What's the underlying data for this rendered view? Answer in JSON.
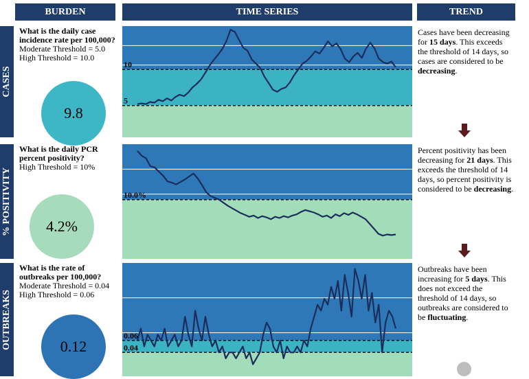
{
  "headers": [
    "BURDEN",
    "TIME SERIES",
    "TREND"
  ],
  "rows": [
    {
      "label": "CASES",
      "question": "What is the daily case incidence rate per 100,000?",
      "thresholds": [
        "Moderate Threshold = 5.0",
        "High Threshold = 10.0"
      ],
      "burden": "9.8",
      "burden_color": "#3db7c6",
      "trend": [
        {
          "text": "Cases have been decreasing for "
        },
        {
          "text": "15 days",
          "bold": true
        },
        {
          "text": ". This exceeds the threshold of 14 days, so cases are considered to be "
        },
        {
          "text": "decreasing",
          "bold": true
        },
        {
          "text": "."
        }
      ]
    },
    {
      "label": "% POSITIVITY",
      "question": "What is the daily PCR percent positivity?",
      "thresholds": [
        "High Threshold = 10%"
      ],
      "burden": "4.2%",
      "burden_color": "#a6dcbc",
      "trend": [
        {
          "text": "Percent positivity has been decreasing for "
        },
        {
          "text": "21 days",
          "bold": true
        },
        {
          "text": ". This exceeds the threshold of 14 days, so percent positivity is considered to be "
        },
        {
          "text": "decreasing",
          "bold": true
        },
        {
          "text": "."
        }
      ]
    },
    {
      "label": "OUTBREAKS",
      "question": "What is the rate of outbreaks per 100,000?",
      "thresholds": [
        "Moderate Threshold = 0.04",
        "High Threshold = 0.06"
      ],
      "burden": "0.12",
      "burden_color": "#2e74b5",
      "trend": [
        {
          "text": "Outbreaks have been increasing for "
        },
        {
          "text": "5 days",
          "bold": true
        },
        {
          "text": ". This does not exceed the threshold of 14 days, so outbreaks are considered to be "
        },
        {
          "text": "fluctuating",
          "bold": true
        },
        {
          "text": "."
        }
      ]
    }
  ],
  "chart_data": [
    {
      "type": "line",
      "color": "#1b2d5b",
      "ylim": [
        0.6,
        16
      ],
      "yticks": [
        5,
        10
      ],
      "band_colors": [
        "#a3dcb9",
        "#3bb3c3",
        "#2e78b7"
      ],
      "values": [
        5.2,
        5.3,
        5.2,
        5.5,
        5.4,
        5.8,
        5.6,
        6.0,
        5.7,
        6.2,
        6.5,
        6.3,
        6.8,
        7.5,
        8.0,
        8.6,
        9.5,
        10.5,
        11.3,
        12.0,
        12.8,
        13.9,
        15.5,
        15.2,
        14.1,
        13.0,
        12.6,
        11.4,
        10.8,
        10.2,
        9.0,
        8.1,
        7.2,
        6.9,
        7.3,
        7.5,
        8.2,
        9.2,
        10.0,
        10.8,
        11.2,
        11.8,
        12.5,
        12.2,
        13.0,
        13.9,
        13.2,
        13.6,
        12.8,
        11.5,
        11.0,
        11.8,
        12.3,
        11.6,
        12.9,
        13.7,
        12.9,
        11.5,
        11.0,
        10.8,
        11.1,
        10.3
      ]
    },
    {
      "type": "line",
      "color": "#1b2d5b",
      "ylim": [
        0.3,
        19.1
      ],
      "yticks": [
        {
          "value": 10,
          "label": "10.0%"
        }
      ],
      "band_colors": [
        "#a3dcb9",
        "#2e78b7"
      ],
      "values": [
        18.0,
        17.2,
        16.8,
        15.5,
        15.3,
        14.6,
        13.9,
        13.0,
        12.8,
        12.5,
        12.9,
        13.3,
        13.8,
        14.3,
        13.5,
        12.4,
        11.2,
        10.6,
        10.3,
        10.0,
        9.5,
        9.0,
        8.6,
        8.2,
        7.8,
        7.5,
        7.2,
        7.4,
        7.0,
        7.3,
        7.1,
        6.8,
        7.2,
        7.0,
        7.3,
        7.1,
        7.4,
        7.6,
        8.0,
        8.3,
        8.1,
        7.9,
        7.6,
        7.2,
        7.4,
        7.0,
        7.6,
        7.3,
        7.8,
        7.5,
        7.9,
        7.6,
        7.2,
        6.8,
        6.0,
        5.2,
        4.4,
        4.1,
        4.3,
        4.2,
        4.3
      ]
    },
    {
      "type": "line",
      "color": "#1b2d5b",
      "ylim": [
        0,
        0.19
      ],
      "yticks": [
        0.04,
        0.06
      ],
      "band_colors": [
        "#a3dcb9",
        "#3bb3c3",
        "#2e78b7"
      ],
      "values": [
        0.06,
        0.08,
        0.05,
        0.07,
        0.06,
        0.05,
        0.07,
        0.06,
        0.08,
        0.05,
        0.06,
        0.07,
        0.05,
        0.06,
        0.1,
        0.07,
        0.05,
        0.11,
        0.08,
        0.06,
        0.1,
        0.07,
        0.05,
        0.06,
        0.04,
        0.05,
        0.03,
        0.04,
        0.04,
        0.03,
        0.04,
        0.05,
        0.03,
        0.04,
        0.02,
        0.03,
        0.04,
        0.07,
        0.09,
        0.08,
        0.05,
        0.04,
        0.06,
        0.03,
        0.05,
        0.04,
        0.04,
        0.05,
        0.04,
        0.06,
        0.05,
        0.08,
        0.1,
        0.12,
        0.11,
        0.13,
        0.12,
        0.15,
        0.13,
        0.16,
        0.11,
        0.17,
        0.14,
        0.1,
        0.18,
        0.16,
        0.13,
        0.17,
        0.11,
        0.14,
        0.09,
        0.12,
        0.04,
        0.09,
        0.11,
        0.1,
        0.08
      ]
    }
  ]
}
